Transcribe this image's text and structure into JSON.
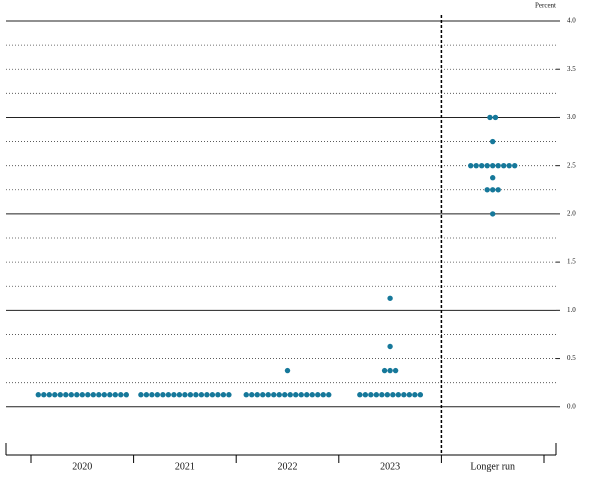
{
  "chart_data": {
    "type": "dot",
    "y_label": "Percent",
    "categories": [
      "2020",
      "2021",
      "2022",
      "2023",
      "Longer run"
    ],
    "dots": [
      [
        {
          "value": 0.125,
          "count": 17
        }
      ],
      [
        {
          "value": 0.125,
          "count": 17
        }
      ],
      [
        {
          "value": 0.125,
          "count": 16
        },
        {
          "value": 0.375,
          "count": 1
        }
      ],
      [
        {
          "value": 0.125,
          "count": 12
        },
        {
          "value": 0.375,
          "count": 3
        },
        {
          "value": 0.625,
          "count": 1
        },
        {
          "value": 1.125,
          "count": 1
        }
      ],
      [
        {
          "value": 2.0,
          "count": 1
        },
        {
          "value": 2.25,
          "count": 3
        },
        {
          "value": 2.375,
          "count": 1
        },
        {
          "value": 2.5,
          "count": 9
        },
        {
          "value": 2.75,
          "count": 1
        },
        {
          "value": 3.0,
          "count": 2
        }
      ]
    ],
    "color": "#16789a",
    "ylim": [
      -0.5,
      4.0
    ],
    "yticks": [
      {
        "value": 0,
        "label": "0.0"
      },
      0.5,
      {
        "value": 1,
        "label": "1.0"
      },
      1.5,
      {
        "value": 2,
        "label": "2.0"
      },
      2.5,
      {
        "value": 3,
        "label": "3.0"
      },
      3.5,
      {
        "value": 4,
        "label": "4.0"
      }
    ],
    "gridlines": [
      0,
      0.25,
      0.5,
      0.75,
      1,
      1.25,
      1.5,
      1.75,
      2,
      2.25,
      2.5,
      2.75,
      3,
      3.25,
      3.5,
      3.75,
      4
    ]
  }
}
